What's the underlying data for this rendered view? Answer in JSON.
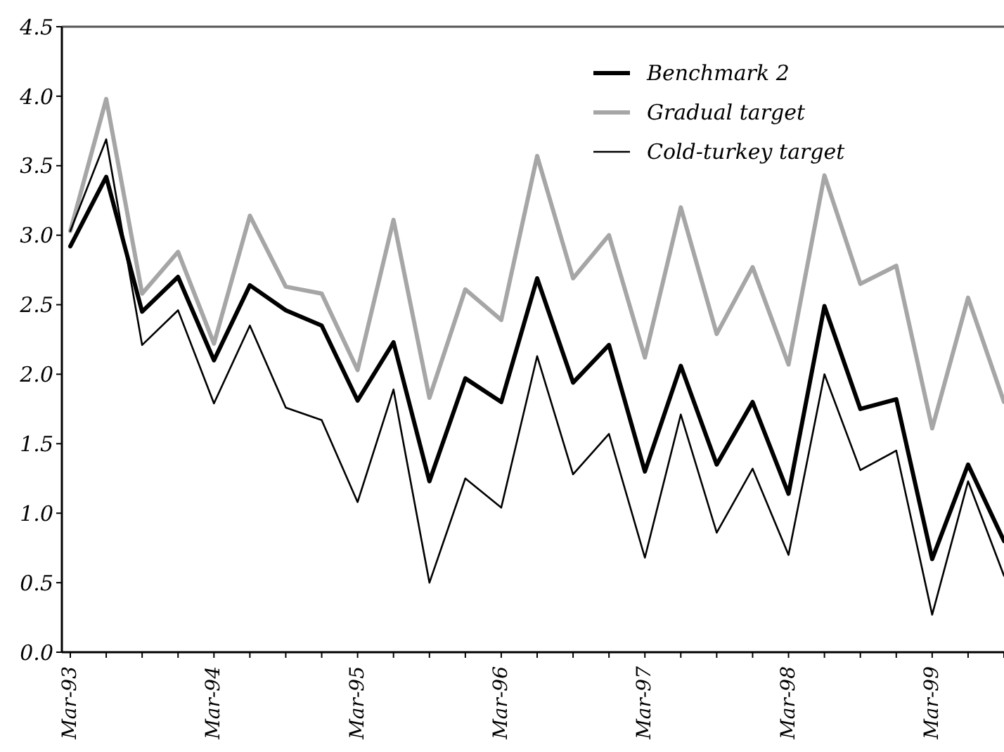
{
  "chart_data": {
    "type": "line",
    "categories": [
      "Mar-93",
      null,
      null,
      null,
      "Mar-94",
      null,
      null,
      null,
      "Mar-95",
      null,
      null,
      null,
      "Mar-96",
      null,
      null,
      null,
      "Mar-97",
      null,
      null,
      null,
      "Mar-98",
      null,
      null,
      null,
      "Mar-99",
      null,
      null
    ],
    "series": [
      {
        "name": "Benchmark 2",
        "color": "#000000",
        "values": [
          2.92,
          3.42,
          2.45,
          2.7,
          2.1,
          2.64,
          2.46,
          2.35,
          1.81,
          2.23,
          1.23,
          1.97,
          1.8,
          2.69,
          1.94,
          2.21,
          1.3,
          2.06,
          1.35,
          1.8,
          1.14,
          2.49,
          1.75,
          1.82,
          0.67,
          1.35,
          0.8
        ]
      },
      {
        "name": "Gradual target",
        "color": "#a6a6a6",
        "values": [
          3.03,
          3.98,
          2.58,
          2.88,
          2.22,
          3.14,
          2.63,
          2.58,
          2.03,
          3.11,
          1.83,
          2.61,
          2.39,
          3.57,
          2.69,
          3.0,
          2.12,
          3.2,
          2.29,
          2.77,
          2.07,
          3.43,
          2.65,
          2.78,
          1.61,
          2.55,
          1.8
        ]
      },
      {
        "name": "Cold-turkey target",
        "color": "#000000",
        "values": [
          3.03,
          3.69,
          2.21,
          2.46,
          1.79,
          2.35,
          1.76,
          1.67,
          1.08,
          1.89,
          0.5,
          1.25,
          1.04,
          2.13,
          1.28,
          1.57,
          0.68,
          1.71,
          0.86,
          1.32,
          0.7,
          2.0,
          1.31,
          1.45,
          0.27,
          1.23,
          0.55
        ]
      }
    ],
    "ylim": [
      0,
      4.5
    ],
    "yticks": [
      {
        "value": 0,
        "label": "0.0"
      },
      {
        "value": 0.5,
        "label": "0.5"
      },
      {
        "value": 1,
        "label": "1.0"
      },
      {
        "value": 1.5,
        "label": "1.5"
      },
      {
        "value": 2,
        "label": "2.0"
      },
      {
        "value": 2.5,
        "label": "2.5"
      },
      {
        "value": 3,
        "label": "3.0"
      },
      {
        "value": 3.5,
        "label": "3.5"
      },
      {
        "value": 4,
        "label": "4.0"
      },
      {
        "value": 4.5,
        "label": "4.5"
      }
    ],
    "grid": false,
    "legend": "top right",
    "marker": "none",
    "line_style": "solid"
  }
}
